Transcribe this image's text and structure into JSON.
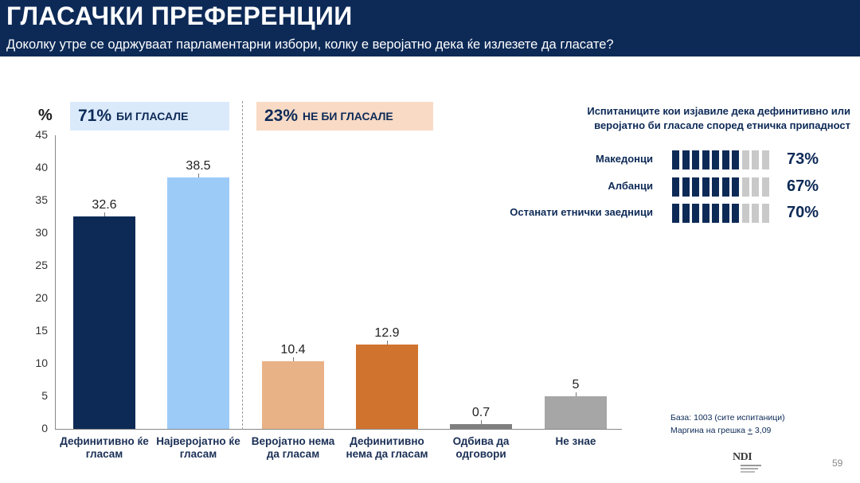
{
  "header": {
    "title": "ГЛАСАЧКИ ПРЕФЕРЕНЦИИ",
    "subtitle": "Доколку утре се одржуваат парламентарни избори, колку е веројатно дека ќе излезете да гласате?"
  },
  "chart_data": {
    "type": "bar",
    "ylabel": "%",
    "ylim": [
      0,
      45
    ],
    "yticks": [
      0,
      5,
      10,
      15,
      20,
      25,
      30,
      35,
      40,
      45
    ],
    "categories": [
      "Дефинитивно ќе гласам",
      "Најверојатно ќе гласам",
      "Веројатно нема да гласам",
      "Дефинитивно нема да гласам",
      "Одбива да одговори",
      "Не знае"
    ],
    "category_lines": [
      [
        "Дефинитивно ќе",
        "гласам"
      ],
      [
        "Најверојатно ќе",
        "гласам"
      ],
      [
        "Веројатно нема",
        "да гласам"
      ],
      [
        "Дефинитивно",
        "нема да гласам"
      ],
      [
        "Одбива да",
        "одговори"
      ],
      [
        "Не знае",
        ""
      ]
    ],
    "values": [
      32.6,
      38.5,
      10.4,
      12.9,
      0.7,
      5
    ],
    "value_labels": [
      "32.6",
      "38.5",
      "10.4",
      "12.9",
      "0.7",
      "5"
    ],
    "colors": [
      "#0d2a57",
      "#9dcbf8",
      "#e9b286",
      "#d0732e",
      "#7f7f7f",
      "#a6a6a6"
    ],
    "groups": [
      {
        "pct": "71%",
        "label": "БИ ГЛАСАЛЕ",
        "bg": "#dbeafb"
      },
      {
        "pct": "23%",
        "label": "НЕ БИ ГЛАСАЛЕ",
        "bg": "#f8dac5"
      }
    ]
  },
  "ethnic": {
    "heading_line1": "Испитаниците кои изјавиле дека дефинитивно или",
    "heading_line2": "веројатно би гласале според етничка припадност",
    "filled_color": "#0d2a57",
    "empty_color": "#c9c9c9",
    "rows": [
      {
        "name": "Македонци",
        "pct": "73%",
        "filled": 7
      },
      {
        "name": "Албанци",
        "pct": "67%",
        "filled": 7
      },
      {
        "name": "Останати етнички заедници",
        "pct": "70%",
        "filled": 7
      }
    ],
    "total_icons": 10
  },
  "footer": {
    "base": "База: 1003 (сите испитаници)",
    "margin_prefix": "Маргина на грешка ",
    "margin_pm": "+",
    "margin_value": " 3,09",
    "logo_text": "NDI",
    "page_number": "59"
  }
}
